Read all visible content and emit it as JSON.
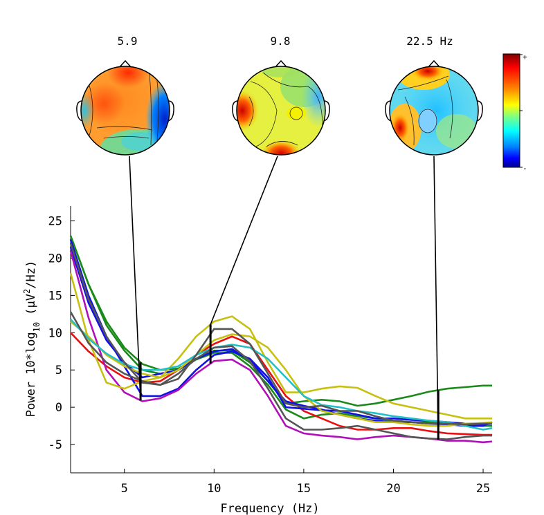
{
  "chart_data": {
    "type": "line",
    "xlabel": "Frequency (Hz)",
    "ylabel": {
      "prefix": "Power  10*log",
      "subscript": "10",
      "unit_a": "(μV",
      "superscript": "2",
      "unit_b": "/Hz)"
    },
    "xlim": [
      2,
      25.5
    ],
    "ylim": [
      -8.8,
      27
    ],
    "xticks": [
      "5",
      "10",
      "15",
      "20",
      "25"
    ],
    "xtick_values": [
      5,
      10,
      15,
      20,
      25
    ],
    "yticks": [
      "25",
      "20",
      "15",
      "10",
      "5",
      "0",
      "-5"
    ],
    "ytick_values": [
      25,
      20,
      15,
      10,
      5,
      0,
      -5
    ],
    "grid": false,
    "x": [
      2,
      3,
      4,
      5,
      6,
      7,
      8,
      9,
      10,
      11,
      12,
      13,
      14,
      15,
      16,
      17,
      18,
      19,
      20,
      21,
      22,
      23,
      24,
      25,
      25.5
    ],
    "series": [
      {
        "color": "#1a8a1a",
        "values": [
          23,
          16.5,
          11.5,
          8,
          5.8,
          5,
          5.2,
          6.5,
          7.6,
          7.6,
          6,
          3.5,
          0.5,
          0.8,
          1,
          0.8,
          0.2,
          0.5,
          1,
          1.5,
          2.1,
          2.5,
          2.7,
          2.9,
          2.9
        ]
      },
      {
        "color": "#1a8a1a",
        "values": [
          23,
          16.5,
          11,
          7.6,
          5,
          4.5,
          5,
          6.4,
          7.3,
          7.3,
          5.5,
          3,
          -0.3,
          -1.5,
          -1,
          -0.8,
          -1.2,
          -1.5,
          -1.8,
          -2,
          -2,
          -2.2,
          -2.5,
          -2.5,
          -2.5
        ]
      },
      {
        "color": "#e81010",
        "values": [
          10,
          7.5,
          5.5,
          4,
          3.3,
          3.5,
          5,
          7,
          8.5,
          9.5,
          8.5,
          5,
          1.5,
          -0.5,
          -1.5,
          -2.5,
          -3,
          -3,
          -2.8,
          -2.8,
          -3.2,
          -3.5,
          -3.6,
          -3.7,
          -3.7
        ]
      },
      {
        "color": "#1010e8",
        "values": [
          22.5,
          15,
          9.5,
          5.5,
          1.5,
          1.5,
          2.5,
          5,
          7,
          7.5,
          6.5,
          4,
          0,
          -0.2,
          -0.4,
          -0.5,
          -1,
          -1.5,
          -1.5,
          -1.7,
          -1.8,
          -2,
          -2.2,
          -2.3,
          -2.2
        ]
      },
      {
        "color": "#1010e8",
        "values": [
          21.5,
          14,
          9,
          6,
          4,
          4.5,
          5,
          6.5,
          7.5,
          7.8,
          6.3,
          3.5,
          0.8,
          0.2,
          -0.3,
          -1,
          -1.5,
          -1.8,
          -2,
          -2,
          -2.2,
          -2.3,
          -2.5,
          -2.5,
          -2
        ]
      },
      {
        "color": "#b010b8",
        "values": [
          21,
          12,
          5,
          2,
          0.8,
          1.2,
          2.3,
          4.5,
          6.2,
          6.4,
          5,
          1.5,
          -2.5,
          -3.5,
          -3.8,
          -4,
          -4.3,
          -4,
          -3.8,
          -4,
          -4.2,
          -4.5,
          -4.5,
          -4.7,
          -4.6
        ]
      },
      {
        "color": "#c8c010",
        "values": [
          18,
          9,
          3.3,
          2.5,
          3.5,
          4,
          6.5,
          9.5,
          11.5,
          12.2,
          10.5,
          6,
          2,
          2,
          2.5,
          2.8,
          2.6,
          1.5,
          0.5,
          0,
          -0.5,
          -1,
          -1.5,
          -1.5,
          -1.5
        ]
      },
      {
        "color": "#c8c010",
        "values": [
          11.5,
          9.5,
          7,
          5.5,
          4.5,
          4,
          5,
          7,
          9,
          9.8,
          9.5,
          8,
          5,
          1.5,
          -0.5,
          -1,
          -1.5,
          -2,
          -2,
          -2.3,
          -2.5,
          -2.5,
          -2.2,
          -2.1,
          -2
        ]
      },
      {
        "color": "#20c0c8",
        "values": [
          11.8,
          9.2,
          7.2,
          5.8,
          5,
          5,
          5.5,
          7,
          8,
          8.4,
          8,
          6.5,
          4,
          1.5,
          0.3,
          0,
          -0.5,
          -0.8,
          -1.2,
          -1.5,
          -1.8,
          -2,
          -2.5,
          -3,
          -2.8
        ]
      },
      {
        "color": "#555555",
        "values": [
          12.8,
          8.6,
          6,
          4.5,
          3.5,
          3,
          3.8,
          7,
          10.5,
          10.5,
          8.5,
          4.5,
          0.5,
          0,
          0.2,
          -0.5,
          -0.5,
          -1.2,
          -1.8,
          -2,
          -2.2,
          -2.2,
          -2.3,
          -2.2,
          -2.2
        ]
      },
      {
        "color": "#555555",
        "values": [
          22,
          14.5,
          9.5,
          6,
          3.3,
          3,
          4.5,
          6.5,
          8,
          8.2,
          6.2,
          2.5,
          -1.5,
          -3,
          -3,
          -2.8,
          -2.5,
          -3,
          -3.5,
          -4,
          -4.2,
          -4.3,
          -4,
          -3.8,
          -3.8
        ]
      }
    ],
    "topomaps": [
      {
        "label": "5.9",
        "freq": 5.9
      },
      {
        "label": "9.8",
        "freq": 9.8
      },
      {
        "label": "22.5 Hz",
        "freq": 22.5
      }
    ],
    "colorbar": {
      "max_label": "+",
      "min_label": "-",
      "colors": [
        "#7f0000",
        "#ff0000",
        "#ff8000",
        "#ffff00",
        "#80ff80",
        "#00ffff",
        "#0080ff",
        "#0000ff",
        "#00008f"
      ]
    }
  }
}
